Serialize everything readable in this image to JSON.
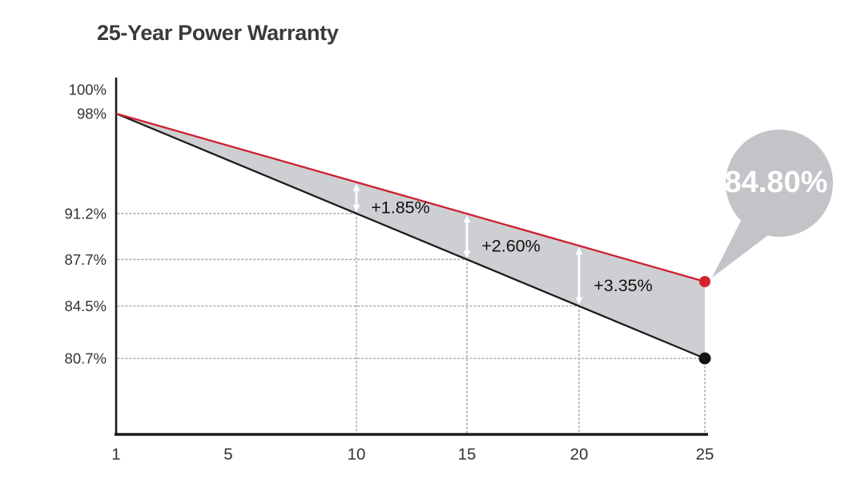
{
  "header": {
    "title": "25-Year Power Warranty"
  },
  "chart_data": {
    "type": "area",
    "title": "25-Year Power Warranty",
    "x_axis": {
      "ticks": [
        "1",
        "5",
        "10",
        "15",
        "20",
        "25"
      ],
      "range": [
        1,
        25
      ],
      "unit": "years"
    },
    "y_axis": {
      "unit": "% of nominal power",
      "labels": [
        {
          "text": "100%",
          "value": 100,
          "at_year": null
        },
        {
          "text": "98%",
          "value": 98,
          "at_year": 1
        },
        {
          "text": "91.2%",
          "value": 91.2,
          "at_year": 10
        },
        {
          "text": "87.7%",
          "value": 87.7,
          "at_year": 15
        },
        {
          "text": "84.5%",
          "value": 84.5,
          "at_year": 20
        },
        {
          "text": "80.7%",
          "value": 80.7,
          "at_year": 25
        }
      ]
    },
    "series": [
      {
        "name": "warranted-power-upper",
        "color": "#ce2030",
        "x": [
          1,
          25
        ],
        "values": [
          98,
          84.8
        ]
      },
      {
        "name": "conventional-degradation-lower",
        "color": "#1c1c1c",
        "x": [
          1,
          25
        ],
        "values": [
          98,
          80.7
        ]
      }
    ],
    "area_between_fill": "#cdcfd2",
    "grid": {
      "style": "dotted",
      "color": "#aaaaaa",
      "crosshair_years": [
        10,
        15,
        20,
        25
      ]
    },
    "annotations": [
      {
        "year": 10,
        "delta_label": "+1.85%",
        "lower_value": 91.2,
        "upper_value": 93.05
      },
      {
        "year": 15,
        "delta_label": "+2.60%",
        "lower_value": 87.7,
        "upper_value": 90.3
      },
      {
        "year": 20,
        "delta_label": "+3.35%",
        "lower_value": 84.5,
        "upper_value": 87.85
      }
    ],
    "endpoints": [
      {
        "series": "warranted-power-upper",
        "year": 25,
        "value": 84.8,
        "dot_color": "#d5232e"
      },
      {
        "series": "conventional-degradation-lower",
        "year": 25,
        "value": 80.7,
        "dot_color": "#141414"
      }
    ],
    "callout": {
      "text": "84.80%",
      "bubble_color": "#c2c4c8",
      "text_color": "#ffffff",
      "points_to": "warranted-power-upper endpoint at year 25"
    },
    "legend": {
      "visible": false
    }
  },
  "colors": {
    "background": "#ffffff",
    "axis": "#1a1a1a",
    "tick_text": "#333333",
    "title_text": "#3a3a3a",
    "annotation_text": "#111111",
    "arrow": "#ffffff"
  }
}
